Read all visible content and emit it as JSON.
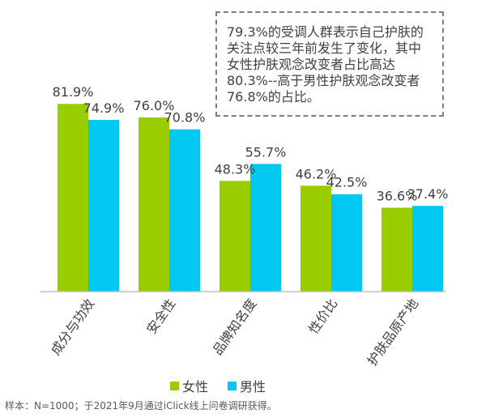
{
  "chart_data": {
    "type": "bar",
    "categories": [
      "成分与功效",
      "安全性",
      "品牌知名度",
      "性价比",
      "护肤品原产地"
    ],
    "series": [
      {
        "name": "女性",
        "color": "#9ACD00",
        "values": [
          81.9,
          76.0,
          48.3,
          46.2,
          36.6
        ]
      },
      {
        "name": "男性",
        "color": "#00C8F0",
        "values": [
          74.9,
          70.8,
          55.7,
          42.5,
          37.4
        ]
      }
    ],
    "value_labels": [
      [
        "81.9%",
        "76.0%",
        "48.3%",
        "46.2%",
        "36.6%"
      ],
      [
        "74.9%",
        "70.8%",
        "55.7%",
        "42.5%",
        "37.4%"
      ]
    ],
    "ylim": [
      0,
      100
    ],
    "grid": false,
    "legend_position": "bottom"
  },
  "callout": {
    "lines": [
      "79.3%的受调人群表示自己护肤的",
      "关注点较三年前发生了变化，其中",
      "女性护肤观念改变者占比高达",
      "80.3%--高于男性护肤观念改变者",
      "76.8%的占比。"
    ]
  },
  "legend": {
    "female": {
      "label": "女性",
      "color": "#9ACD00"
    },
    "male": {
      "label": "男性",
      "color": "#00C8F0"
    }
  },
  "footnote": "样本：N=1000；于2021年9月通过iClick线上问卷调研获得。"
}
